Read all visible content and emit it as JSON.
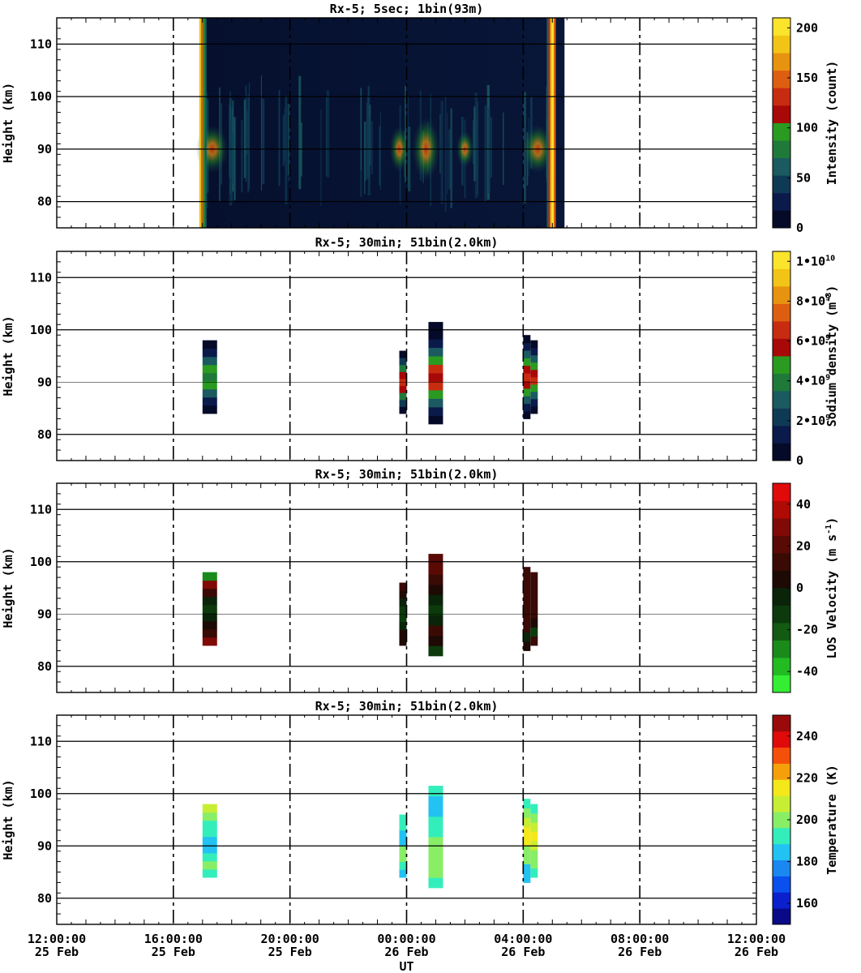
{
  "figure": {
    "xlabel": "UT",
    "x_range": [
      "12:00:00 25 Feb",
      "12:00:00 26 Feb"
    ],
    "x_ticks": [
      {
        "time": "12:00:00",
        "date": "25 Feb"
      },
      {
        "time": "16:00:00",
        "date": "25 Feb"
      },
      {
        "time": "20:00:00",
        "date": "25 Feb"
      },
      {
        "time": "00:00:00",
        "date": "26 Feb"
      },
      {
        "time": "04:00:00",
        "date": "26 Feb"
      },
      {
        "time": "08:00:00",
        "date": "26 Feb"
      },
      {
        "time": "12:00:00",
        "date": "26 Feb"
      }
    ]
  },
  "chart_data": [
    {
      "type": "heatmap",
      "title": "Rx-5;  5sec; 1bin(93m)",
      "ylabel": "Height (km)",
      "ylim": [
        75,
        115
      ],
      "y_ticks": [
        80,
        90,
        100,
        110
      ],
      "colorbar": {
        "label": "Intensity (count)",
        "range": [
          0,
          210
        ],
        "ticks": [
          "0",
          "50",
          "100",
          "150",
          "200"
        ],
        "tick_values": [
          0,
          50,
          100,
          150,
          200
        ],
        "colors": [
          "#050a28",
          "#0a1a4a",
          "#0f3a55",
          "#1a5a60",
          "#1f7a3a",
          "#2a9a20",
          "#a80808",
          "#c82c10",
          "#dd5e10",
          "#e8930f",
          "#f2c416",
          "#fbe42c"
        ]
      },
      "observation_window": {
        "start": "16:55 25 Feb",
        "end": "05:25 26 Feb"
      },
      "bright_edges": [
        "17:00 25 Feb",
        "04:55 26 Feb"
      ],
      "peak_layer_height_km": 90
    },
    {
      "type": "heatmap",
      "title": "Rx-5; 30min; 51bin(2.0km)",
      "ylabel": "Height (km)",
      "ylim": [
        75,
        115
      ],
      "y_ticks": [
        80,
        90,
        100,
        110
      ],
      "colorbar": {
        "label": "Sodium density (m⁻³)",
        "range": [
          0,
          10500000000.0
        ],
        "tick_values": [
          0,
          2000000000.0,
          4000000000.0,
          6000000000.0,
          8000000000.0,
          10000000000.0
        ],
        "ticks": [
          {
            "base": "0",
            "exp": ""
          },
          {
            "base": "2•10",
            "exp": "9"
          },
          {
            "base": "4•10",
            "exp": "9"
          },
          {
            "base": "6•10",
            "exp": "9"
          },
          {
            "base": "8•10",
            "exp": "9"
          },
          {
            "base": "1•10",
            "exp": "10"
          }
        ],
        "colors": [
          "#050a28",
          "#0a1a4a",
          "#0f3a55",
          "#1a5a60",
          "#1f7a3a",
          "#2a9a20",
          "#a80808",
          "#c82c10",
          "#dd5e10",
          "#e8930f",
          "#f2c416",
          "#fbe42c"
        ]
      },
      "columns": [
        {
          "t_start": "17:00 25 Feb",
          "t_end": "17:30 25 Feb",
          "z_min": 84,
          "z_max": 98,
          "cells": [
            0,
            1,
            3,
            5,
            4,
            5,
            3,
            1,
            0
          ]
        },
        {
          "t_start": "23:45 25 Feb",
          "t_end": "00:00 26 Feb",
          "z_min": 84,
          "z_max": 96,
          "cells": [
            0,
            2,
            4,
            6,
            7,
            6,
            4,
            2,
            0
          ]
        },
        {
          "t_start": "00:45 26 Feb",
          "t_end": "01:15 26 Feb",
          "z_min": 82,
          "z_max": 101.5,
          "cells": [
            0,
            1,
            3,
            5,
            7,
            6,
            7,
            5,
            3,
            1,
            0,
            0
          ]
        },
        {
          "t_start": "04:00 26 Feb",
          "t_end": "04:15 26 Feb",
          "z_min": 83,
          "z_max": 99,
          "cells": [
            0,
            1,
            3,
            5,
            6,
            7,
            6,
            5,
            3,
            1,
            0
          ]
        },
        {
          "t_start": "04:15 26 Feb",
          "t_end": "04:30 26 Feb",
          "z_min": 84,
          "z_max": 98,
          "cells": [
            0,
            1,
            3,
            5,
            7,
            6,
            5,
            3,
            1,
            0
          ]
        }
      ]
    },
    {
      "type": "heatmap",
      "title": "Rx-5; 30min; 51bin(2.0km)",
      "ylabel": "LOS Velocity",
      "ylabel_units": "(m s⁻¹)",
      "ylim": [
        75,
        115
      ],
      "y_ticks": [
        80,
        90,
        100,
        110
      ],
      "colorbar": {
        "label": "Velocity (m s⁻¹)",
        "range": [
          -50,
          50
        ],
        "ticks": [
          "-40",
          "-20",
          "0",
          "20",
          "40"
        ],
        "tick_values": [
          -40,
          -20,
          0,
          20,
          40
        ],
        "colors": [
          "#33ee33",
          "#22bb22",
          "#1a8a1a",
          "#135a13",
          "#0c3a0c",
          "#0a240a",
          "#1e0a05",
          "#3a0a05",
          "#5a0a05",
          "#800a05",
          "#b00a05",
          "#e00a0a"
        ]
      },
      "columns": [
        {
          "t_start": "17:00 25 Feb",
          "t_end": "17:30 25 Feb",
          "z_min": 84,
          "z_max": 98,
          "cells": [
            9,
            7,
            6,
            5,
            4,
            5,
            7,
            9,
            2
          ]
        },
        {
          "t_start": "23:45 25 Feb",
          "t_end": "00:00 26 Feb",
          "z_min": 84,
          "z_max": 96,
          "cells": [
            6,
            6,
            5,
            4,
            4,
            5,
            6,
            7
          ]
        },
        {
          "t_start": "00:45 26 Feb",
          "t_end": "01:15 26 Feb",
          "z_min": 82,
          "z_max": 101.5,
          "cells": [
            4,
            6,
            7,
            5,
            4,
            5,
            6,
            7,
            8,
            8
          ]
        },
        {
          "t_start": "04:00 26 Feb",
          "t_end": "04:15 26 Feb",
          "z_min": 83,
          "z_max": 99,
          "cells": [
            6,
            5,
            7,
            7,
            7,
            7,
            7,
            7,
            7
          ]
        },
        {
          "t_start": "04:15 26 Feb",
          "t_end": "04:30 26 Feb",
          "z_min": 84,
          "z_max": 98,
          "cells": [
            7,
            4,
            6,
            7,
            7,
            7,
            7,
            7
          ]
        }
      ]
    },
    {
      "type": "heatmap",
      "title": "Rx-5; 30min; 51bin(2.0km)",
      "ylabel": "Height (km)",
      "ylim": [
        75,
        115
      ],
      "y_ticks": [
        80,
        90,
        100,
        110
      ],
      "colorbar": {
        "label": "Temperature (K)",
        "range": [
          150,
          250
        ],
        "ticks": [
          "160",
          "180",
          "200",
          "220",
          "240"
        ],
        "tick_values": [
          160,
          180,
          200,
          220,
          240
        ],
        "colors": [
          "#0a0a88",
          "#0a20cc",
          "#0a50ee",
          "#1a88f0",
          "#22c2f2",
          "#33eebb",
          "#88ee66",
          "#c8ee33",
          "#f5e81a",
          "#f5a00a",
          "#f5500a",
          "#e00a0a",
          "#9a0a0a"
        ]
      },
      "columns": [
        {
          "t_start": "17:00 25 Feb",
          "t_end": "17:30 25 Feb",
          "z_min": 84,
          "z_max": 98,
          "cells": [
            5,
            6,
            5,
            4,
            4,
            5,
            5,
            6,
            7
          ]
        },
        {
          "t_start": "23:45 25 Feb",
          "t_end": "00:00 26 Feb",
          "z_min": 84,
          "z_max": 96,
          "cells": [
            4,
            5,
            6,
            6,
            4,
            4,
            5,
            5
          ]
        },
        {
          "t_start": "00:45 26 Feb",
          "t_end": "01:15 26 Feb",
          "z_min": 82,
          "z_max": 101.5,
          "cells": [
            5,
            6,
            6,
            6,
            6,
            5,
            5,
            4,
            4,
            5
          ]
        },
        {
          "t_start": "04:00 26 Feb",
          "t_end": "04:15 26 Feb",
          "z_min": 83,
          "z_max": 99,
          "cells": [
            4,
            4,
            6,
            6,
            8,
            8,
            7,
            6,
            5
          ]
        },
        {
          "t_start": "04:15 26 Feb",
          "t_end": "04:30 26 Feb",
          "z_min": 84,
          "z_max": 98,
          "cells": [
            5,
            6,
            6,
            7,
            8,
            7,
            6,
            5
          ]
        }
      ]
    }
  ]
}
